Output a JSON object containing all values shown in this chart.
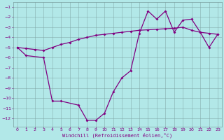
{
  "xlabel": "Windchill (Refroidissement éolien,°C)",
  "background_color": "#b2e8e8",
  "line_color": "#800080",
  "grid_color": "#7aa0a0",
  "xlim": [
    -0.5,
    23.5
  ],
  "ylim": [
    -12.8,
    -0.5
  ],
  "yticks": [
    -1,
    -2,
    -3,
    -4,
    -5,
    -6,
    -7,
    -8,
    -9,
    -10,
    -11,
    -12
  ],
  "xticks": [
    0,
    1,
    2,
    3,
    4,
    5,
    6,
    7,
    8,
    9,
    10,
    11,
    12,
    13,
    14,
    15,
    16,
    17,
    18,
    19,
    20,
    21,
    22,
    23
  ],
  "series1_x": [
    0,
    1,
    3,
    4,
    5,
    7,
    8,
    9,
    10,
    11,
    12,
    13,
    14,
    15,
    16,
    17,
    18,
    19,
    20,
    21,
    22,
    23
  ],
  "series1_y": [
    -5.0,
    -5.8,
    -6.0,
    -10.3,
    -10.3,
    -10.7,
    -12.2,
    -12.2,
    -11.5,
    -9.4,
    -8.0,
    -7.3,
    -3.6,
    -1.4,
    -2.2,
    -1.4,
    -3.5,
    -2.3,
    -2.2,
    -3.5,
    -5.0,
    -3.7
  ],
  "series2_x": [
    0,
    1,
    2,
    3,
    4,
    5,
    6,
    7,
    8,
    9,
    10,
    11,
    12,
    13,
    14,
    15,
    16,
    17,
    18,
    19,
    20,
    21,
    22,
    23
  ],
  "series2_y": [
    -5.0,
    -5.1,
    -5.2,
    -5.3,
    -5.0,
    -4.7,
    -4.5,
    -4.2,
    -4.0,
    -3.8,
    -3.7,
    -3.6,
    -3.5,
    -3.4,
    -3.3,
    -3.25,
    -3.2,
    -3.15,
    -3.1,
    -3.0,
    -3.3,
    -3.5,
    -3.6,
    -3.7
  ]
}
